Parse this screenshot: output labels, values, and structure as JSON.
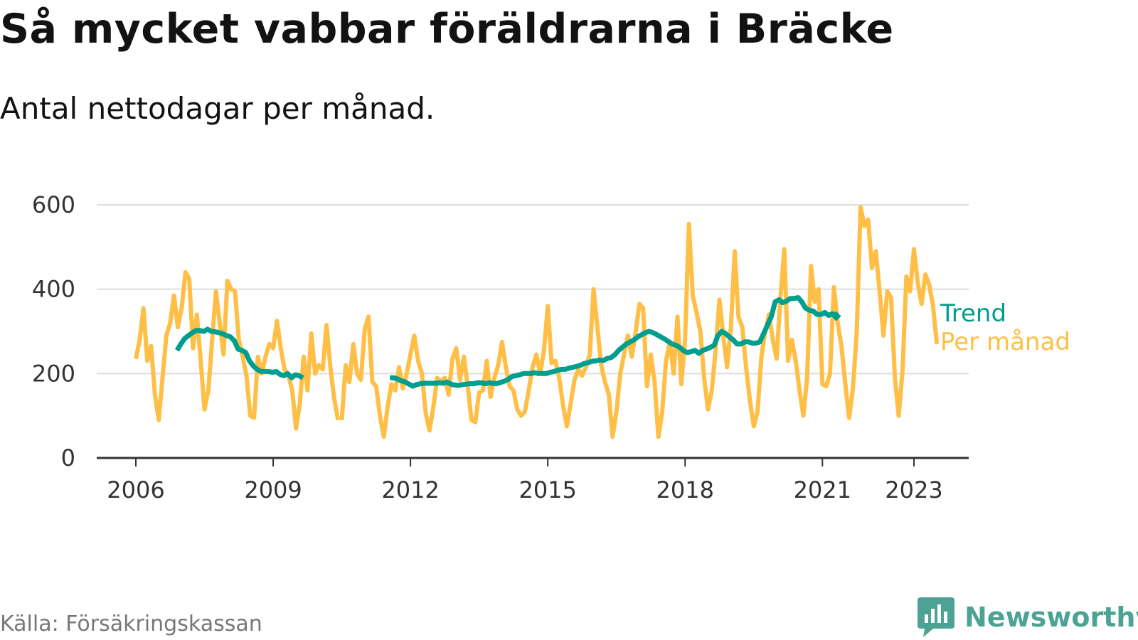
{
  "title": "Så mycket vabbar föräldrarna i Bräcke",
  "subtitle": "Antal nettodagar per månad.",
  "source": "Källa: Försäkringskassan",
  "brand": {
    "name": "Newsworthy",
    "icon": "newsworthy-logo-icon"
  },
  "colors": {
    "monthly": "#FFBF47",
    "trend": "#009E8E",
    "grid": "#dddddd",
    "axis": "#333333",
    "brand": "#4CA394"
  },
  "chart_data": {
    "type": "line",
    "title": "Så mycket vabbar föräldrarna i Bräcke",
    "subtitle": "Antal nettodagar per månad.",
    "xlabel": "",
    "ylabel": "",
    "ylim": [
      0,
      600
    ],
    "y_ticks": [
      0,
      200,
      400,
      600
    ],
    "x_ticks": [
      {
        "label": "2006",
        "value": 2006
      },
      {
        "label": "2009",
        "value": 2009
      },
      {
        "label": "2012",
        "value": 2012
      },
      {
        "label": "2015",
        "value": 2015
      },
      {
        "label": "2018",
        "value": 2018
      },
      {
        "label": "2021",
        "value": 2021
      },
      {
        "label": "2023",
        "value": 2023
      }
    ],
    "xlim": [
      2005.15,
      2024.2
    ],
    "grid": true,
    "legend": "right",
    "series": [
      {
        "name": "Per månad",
        "segments": [
          {
            "start": 2006.0,
            "step": 0.0833333,
            "values": [
              235,
              280,
              355,
              230,
              265,
              150,
              90,
              190,
              290,
              320,
              385,
              310,
              355,
              440,
              425,
              260,
              340,
              230,
              115,
              160,
              280,
              395,
              320,
              245,
              420,
              400,
              395,
              280,
              240,
              195,
              100,
              95,
              240,
              200,
              240,
              270,
              260,
              325,
              260,
              210,
              195,
              160,
              70,
              130,
              240,
              160,
              295,
              200,
              220,
              210,
              315,
              215,
              140,
              90
            ]
          },
          {
            "start": 2010.5,
            "step": 0.0833333,
            "values": [
              90,
              220,
              180,
              270,
              200,
              185,
              305,
              335,
              180,
              170,
              100,
              50,
              120,
              175,
              160,
              215,
              165,
              200,
              245,
              290,
              230,
              200,
              105,
              65,
              120,
              190,
              180,
              190,
              150,
              235,
              260,
              185,
              240,
              170,
              90,
              85,
              155,
              160,
              230,
              145,
              190,
              220,
              275,
              215,
              170,
              160,
              115,
              100,
              110,
              160,
              215,
              245,
              200,
              255,
              360,
              225,
              230,
              190,
              125,
              75,
              130,
              185,
              210,
              195,
              215,
              245,
              400,
              310,
              220,
              180,
              150,
              50,
              110,
              200,
              245,
              290,
              240,
              295,
              365,
              355,
              170,
              245,
              180,
              50,
              110,
              230,
              275,
              200,
              335,
              175,
              280,
              555,
              385,
              345,
              300,
              190,
              115,
              160,
              255,
              375,
              290,
              215,
              310,
              490,
              335,
              310,
              215,
              135,
              75,
              110,
              240,
              300,
              340,
              280,
              235,
              380,
              495,
              230,
              280,
              230,
              160,
              100,
              190,
              455,
              370,
              400,
              175,
              170,
              200,
              405,
              320,
              265,
              175,
              95,
              165,
              300,
              595,
              550,
              565,
              450,
              490,
              395,
              290,
              395,
              380,
              190,
              100,
              205,
              430,
              395,
              495,
              415,
              365,
              435,
              410,
              360,
              270
            ]
          }
        ]
      },
      {
        "name": "Trend",
        "segments": [
          {
            "start": 2006.9,
            "step": 0.0833333,
            "values": [
              255,
              270,
              283,
              290,
              297,
              302,
              302,
              300,
              305,
              300,
              299,
              297,
              294,
              290,
              287,
              278,
              258,
              255,
              250,
              230,
              218,
              210,
              205,
              205,
              205,
              203,
              205,
              198,
              195,
              200,
              190,
              197,
              195,
              190
            ]
          },
          {
            "start": 2011.55,
            "step": 0.0833333,
            "values": [
              190,
              190,
              187,
              183,
              180,
              175,
              170,
              174,
              176,
              177,
              177,
              177,
              177,
              178,
              177,
              180,
              175,
              173,
              172,
              174,
              175,
              176,
              176,
              178,
              178,
              176,
              178,
              177,
              176,
              179,
              182,
              186,
              193,
              195,
              197,
              200,
              200,
              200,
              202,
              200,
              200,
              200,
              203,
              205,
              208,
              210,
              210,
              213,
              215,
              217,
              220,
              224,
              226,
              229,
              230,
              232,
              231,
              236,
              238,
              245,
              255,
              263,
              270,
              275,
              280,
              287,
              292,
              297,
              300,
              297,
              292,
              287,
              282,
              276,
              270,
              267,
              262,
              254,
              250,
              252,
              255,
              248,
              255,
              258,
              262,
              267,
              290,
              300,
              295,
              287,
              280,
              270,
              270,
              275,
              275,
              272,
              272,
              275,
              295,
              315,
              335,
              370,
              375,
              368,
              372,
              378,
              378,
              380,
              370,
              355,
              350,
              348,
              340,
              340,
              345,
              338,
              342,
              336
            ]
          }
        ]
      }
    ]
  }
}
